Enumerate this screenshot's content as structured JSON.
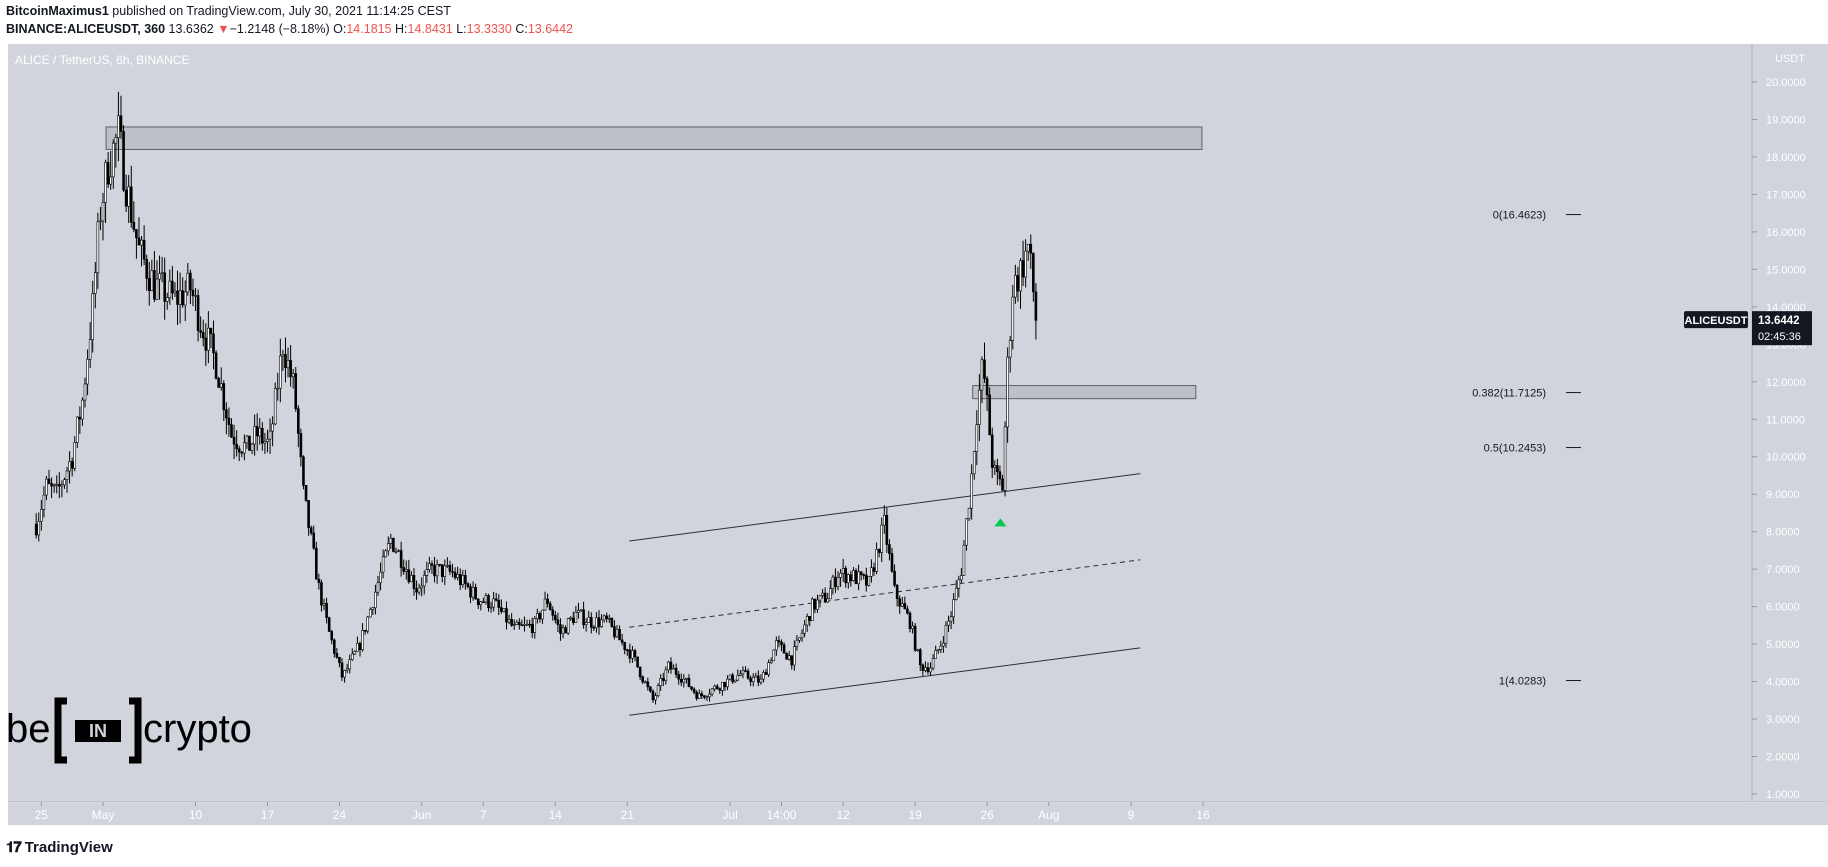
{
  "header": {
    "author": "BitcoinMaximus1",
    "published": "published on TradingView.com, July 30, 2021 11:14:25 CEST",
    "symbol": "BINANCE:ALICEUSDT, 360",
    "last": "13.6362",
    "change_arrow": "▼",
    "change": "−1.2148 (−8.18%)",
    "o_label": "O:",
    "o_value": "14.1815",
    "h_label": "H:",
    "h_value": "14.8431",
    "l_label": "L:",
    "l_value": "13.3330",
    "c_label": "C:",
    "c_value": "13.6442"
  },
  "footer": {
    "icon": "tradingview-logo-icon",
    "brand": "TradingView"
  },
  "chart_data": {
    "type": "candlestick",
    "title": "ALICE / TetherUS, 6h, BINANCE",
    "currency": "USDT",
    "ylim": [
      0.7,
      21.3
    ],
    "y_ticks": [
      "1.0000",
      "2.0000",
      "3.0000",
      "4.0000",
      "5.0000",
      "6.0000",
      "7.0000",
      "8.0000",
      "9.0000",
      "10.0000",
      "11.0000",
      "12.0000",
      "13.0000",
      "14.0000",
      "15.0000",
      "16.0000",
      "17.0000",
      "18.0000",
      "19.0000",
      "20.0000"
    ],
    "x_ticks": [
      {
        "label": "25",
        "day": -6
      },
      {
        "label": "May",
        "day": 0
      },
      {
        "label": "10",
        "day": 9
      },
      {
        "label": "17",
        "day": 16
      },
      {
        "label": "24",
        "day": 23
      },
      {
        "label": "Jun",
        "day": 31
      },
      {
        "label": "7",
        "day": 37
      },
      {
        "label": "14",
        "day": 44
      },
      {
        "label": "21",
        "day": 51
      },
      {
        "label": "Jul",
        "day": 61
      },
      {
        "label": "14:00",
        "day": 66
      },
      {
        "label": "12",
        "day": 72
      },
      {
        "label": "19",
        "day": 79
      },
      {
        "label": "26",
        "day": 86
      },
      {
        "label": "Aug",
        "day": 92
      },
      {
        "label": "9",
        "day": 100
      },
      {
        "label": "16",
        "day": 107
      }
    ],
    "price_label": {
      "symbol": "ALICEUSDT",
      "value": "13.6442",
      "countdown": "02:45:36",
      "y": 13.6442
    },
    "fib_levels": [
      {
        "label": "0(16.4623)",
        "value": 16.4623
      },
      {
        "label": "0.382(11.7125)",
        "value": 11.7125
      },
      {
        "label": "0.5(10.2453)",
        "value": 10.2453
      },
      {
        "label": "1(4.0283)",
        "value": 4.0283
      }
    ],
    "zones": [
      {
        "name": "resistance",
        "d1": 0.3,
        "d2": 106.9,
        "y1": 18.2,
        "y2": 18.8
      },
      {
        "name": "support",
        "d1": 84.6,
        "d2": 106.3,
        "y1": 11.55,
        "y2": 11.9
      }
    ],
    "channel": {
      "upper": {
        "d1": 51.2,
        "y1": 7.75,
        "d2": 100.9,
        "y2": 9.55
      },
      "middle": {
        "d1": 51.2,
        "y1": 5.45,
        "d2": 100.9,
        "y2": 7.25
      },
      "lower": {
        "d1": 51.2,
        "y1": 3.1,
        "d2": 100.9,
        "y2": 4.9
      }
    },
    "marker": {
      "name": "green-triangle",
      "day": 87.3,
      "y": 8.25
    },
    "anchors": [
      [
        -6.5,
        8.2
      ],
      [
        -5.5,
        9.2
      ],
      [
        -4.5,
        9.0
      ],
      [
        -3,
        10.0
      ],
      [
        -2,
        11.5
      ],
      [
        -1,
        14.0
      ],
      [
        -0.3,
        16.5
      ],
      [
        0.5,
        17.8
      ],
      [
        1.5,
        18.6
      ],
      [
        2.3,
        17.2
      ],
      [
        3.5,
        15.5
      ],
      [
        5,
        14.6
      ],
      [
        7,
        14.2
      ],
      [
        8.5,
        14.5
      ],
      [
        9.5,
        13.6
      ],
      [
        11,
        12.5
      ],
      [
        12.5,
        10.6
      ],
      [
        14,
        10.2
      ],
      [
        15,
        10.6
      ],
      [
        16.2,
        10.3
      ],
      [
        17.5,
        13.0
      ],
      [
        18.6,
        11.8
      ],
      [
        19.5,
        9.0
      ],
      [
        21,
        6.5
      ],
      [
        22,
        5.3
      ],
      [
        23.3,
        4.1
      ],
      [
        25,
        5.0
      ],
      [
        26.5,
        6.4
      ],
      [
        28,
        7.8
      ],
      [
        29,
        7.3
      ],
      [
        30.5,
        6.5
      ],
      [
        32,
        7.0
      ],
      [
        34,
        6.9
      ],
      [
        35.5,
        6.5
      ],
      [
        36.5,
        6.2
      ],
      [
        38,
        6.1
      ],
      [
        40,
        5.4
      ],
      [
        42,
        5.5
      ],
      [
        43.2,
        6.2
      ],
      [
        44.5,
        5.3
      ],
      [
        46,
        5.8
      ],
      [
        47.5,
        5.6
      ],
      [
        49,
        5.6
      ],
      [
        50.3,
        5.1
      ],
      [
        51.5,
        4.7
      ],
      [
        52.5,
        4.1
      ],
      [
        53.5,
        3.5
      ],
      [
        55,
        4.4
      ],
      [
        56,
        4.2
      ],
      [
        58,
        3.6
      ],
      [
        60,
        3.9
      ],
      [
        62,
        4.2
      ],
      [
        64,
        4.0
      ],
      [
        65.5,
        5.0
      ],
      [
        67,
        4.6
      ],
      [
        69,
        6.0
      ],
      [
        70.5,
        6.3
      ],
      [
        71.5,
        6.9
      ],
      [
        73,
        6.8
      ],
      [
        74.5,
        6.6
      ],
      [
        76,
        8.2
      ],
      [
        77,
        6.4
      ],
      [
        78.5,
        5.6
      ],
      [
        79.5,
        4.4
      ],
      [
        80.5,
        4.4
      ],
      [
        81.5,
        5.0
      ],
      [
        82.5,
        5.8
      ],
      [
        83.5,
        7.0
      ],
      [
        84.5,
        9.5
      ],
      [
        85,
        11.2
      ],
      [
        85.6,
        12.5
      ],
      [
        86.2,
        10.8
      ],
      [
        86.6,
        9.6
      ],
      [
        87,
        9.4
      ],
      [
        87.5,
        9.2
      ],
      [
        88,
        12.4
      ],
      [
        88.5,
        14.5
      ],
      [
        89.3,
        15.0
      ],
      [
        90,
        15.6
      ],
      [
        90.5,
        14.4
      ],
      [
        90.8,
        13.64
      ]
    ]
  }
}
